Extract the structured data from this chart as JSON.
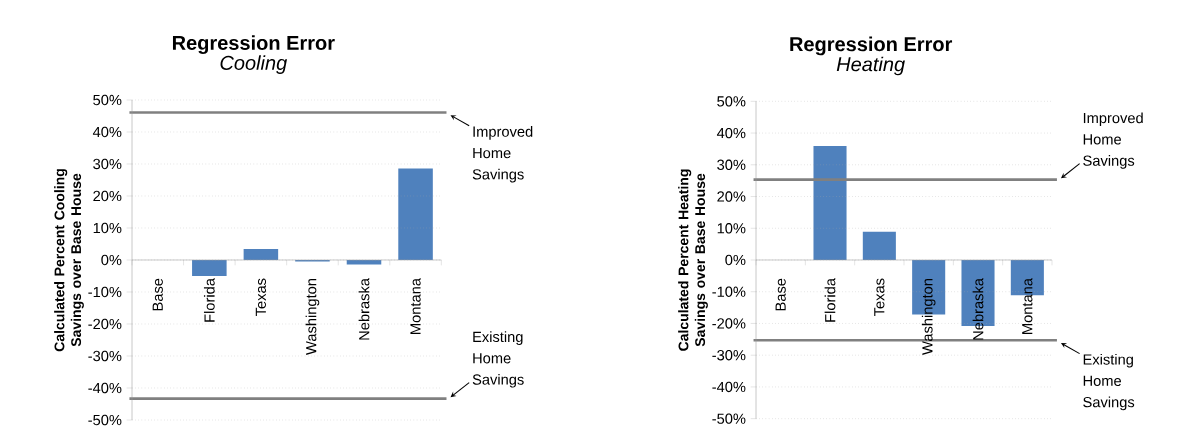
{
  "chart_data": [
    {
      "type": "bar",
      "title": "Regression Error",
      "subtitle": "Cooling",
      "ylabel": "Calculated Percent Cooling Savings over Base House",
      "categories": [
        "Base",
        "Florida",
        "Texas",
        "Washington",
        "Nebraska",
        "Montana"
      ],
      "values": [
        0,
        -5.0,
        3.4,
        -0.5,
        -1.4,
        28.6
      ],
      "color": "#4f81bd",
      "ylim": [
        -50,
        50
      ],
      "yticks": [
        {
          "value": -50,
          "label": "-50%"
        },
        {
          "value": -40,
          "label": "-40%"
        },
        {
          "value": -30,
          "label": "-30%"
        },
        {
          "value": -20,
          "label": "-20%"
        },
        {
          "value": -10,
          "label": "-10%"
        },
        {
          "value": 0,
          "label": "0%"
        },
        {
          "value": 10,
          "label": "10%"
        },
        {
          "value": 20,
          "label": "20%"
        },
        {
          "value": 30,
          "label": "30%"
        },
        {
          "value": 40,
          "label": "40%"
        },
        {
          "value": 50,
          "label": "50%"
        }
      ],
      "grid": "y",
      "ref_lines": [
        {
          "axis": "y",
          "value": 46.1,
          "label": "Improved Home Savings",
          "color": "#808080"
        },
        {
          "axis": "y",
          "value": -43.3,
          "label": "Existing Home Savings",
          "color": "#808080"
        }
      ]
    },
    {
      "type": "bar",
      "title": "Regression Error",
      "subtitle": "Heating",
      "ylabel": "Calculated Percent Heating Savings over Base House",
      "categories": [
        "Base",
        "Florida",
        "Texas",
        "Washington",
        "Nebraska",
        "Montana"
      ],
      "values": [
        0,
        35.9,
        8.9,
        -17.2,
        -20.8,
        -11.1
      ],
      "color": "#4f81bd",
      "ylim": [
        -50,
        50
      ],
      "yticks": [
        {
          "value": -50,
          "label": "-50%"
        },
        {
          "value": -40,
          "label": "-40%"
        },
        {
          "value": -30,
          "label": "-30%"
        },
        {
          "value": -20,
          "label": "-20%"
        },
        {
          "value": -10,
          "label": "-10%"
        },
        {
          "value": 0,
          "label": "0%"
        },
        {
          "value": 10,
          "label": "10%"
        },
        {
          "value": 20,
          "label": "20%"
        },
        {
          "value": 30,
          "label": "30%"
        },
        {
          "value": 40,
          "label": "40%"
        },
        {
          "value": 50,
          "label": "50%"
        }
      ],
      "grid": "y",
      "ref_lines": [
        {
          "axis": "y",
          "value": 25.3,
          "label": "Improved Home Savings",
          "color": "#808080"
        },
        {
          "axis": "y",
          "value": -25.3,
          "label": "Existing Home Savings",
          "color": "#808080"
        }
      ]
    }
  ]
}
